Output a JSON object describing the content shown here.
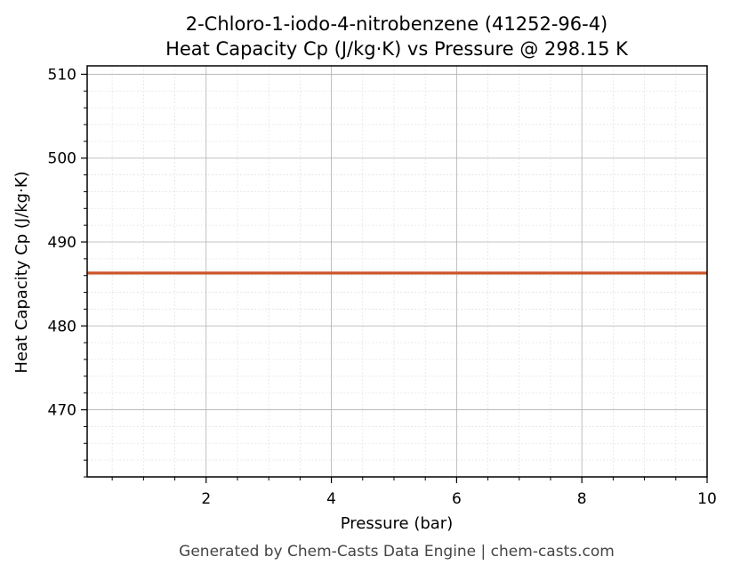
{
  "chart_data": {
    "type": "line",
    "title": "2-Chloro-1-iodo-4-nitrobenzene (41252-96-4)",
    "subtitle": "Heat Capacity Cp (J/kg·K) vs Pressure @ 298.15 K",
    "xlabel": "Pressure (bar)",
    "ylabel": "Heat Capacity Cp (J/kg·K)",
    "xlim": [
      0.1,
      10
    ],
    "ylim": [
      462,
      511
    ],
    "x_ticks": [
      2,
      4,
      6,
      8,
      10
    ],
    "y_ticks": [
      470,
      480,
      490,
      500,
      510
    ],
    "x_minor_step": 0.5,
    "y_minor_step": 2,
    "grid": true,
    "series": [
      {
        "color": "#cc5529",
        "x": [
          0.1,
          10
        ],
        "y": [
          486.3,
          486.3
        ]
      }
    ]
  },
  "footer": "Generated by Chem-Casts Data Engine | chem-casts.com"
}
